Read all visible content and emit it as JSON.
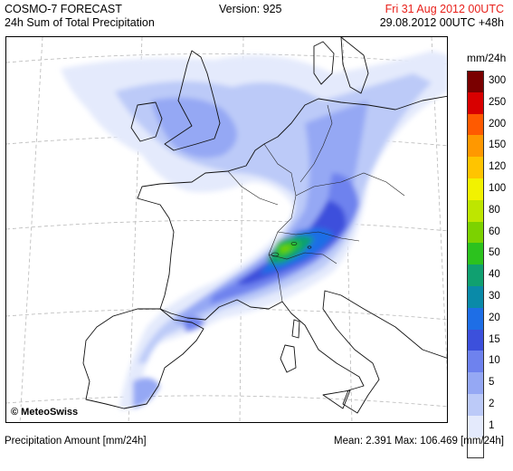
{
  "header": {
    "title": "COSMO-7 FORECAST",
    "subtitle": "24h Sum of Total Precipitation",
    "version": "Version: 925",
    "valid_time": "Fri 31 Aug 2012 00UTC",
    "run_time": "29.08.2012 00UTC +48h"
  },
  "legend": {
    "units": "mm/24h",
    "items": [
      {
        "label": "300",
        "color": "#7a0000"
      },
      {
        "label": "250",
        "color": "#d80000"
      },
      {
        "label": "200",
        "color": "#ff5a00"
      },
      {
        "label": "150",
        "color": "#ff9800"
      },
      {
        "label": "120",
        "color": "#ffc400"
      },
      {
        "label": "100",
        "color": "#f2f200"
      },
      {
        "label": "80",
        "color": "#bee600"
      },
      {
        "label": "60",
        "color": "#7cd200"
      },
      {
        "label": "50",
        "color": "#2cc21e"
      },
      {
        "label": "40",
        "color": "#10a070"
      },
      {
        "label": "30",
        "color": "#0a8aa8"
      },
      {
        "label": "20",
        "color": "#1e6ee6"
      },
      {
        "label": "15",
        "color": "#3c50dc"
      },
      {
        "label": "10",
        "color": "#6e82ee"
      },
      {
        "label": "5",
        "color": "#95a8f4"
      },
      {
        "label": "2",
        "color": "#bccaf8"
      },
      {
        "label": "1",
        "color": "#e4eafc"
      },
      {
        "label": "",
        "color": "#ffffff"
      }
    ]
  },
  "map": {
    "copyright": "© MeteoSwiss"
  },
  "footer": {
    "left": "Precipitation Amount [mm/24h]",
    "right": "Mean:   2.391 Max: 106.469 [mm/24h]"
  }
}
